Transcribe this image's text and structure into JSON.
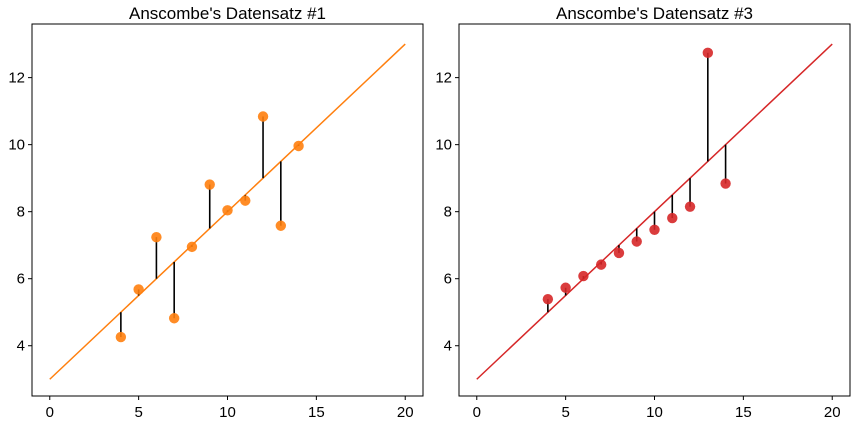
{
  "chart_data": [
    {
      "type": "scatter",
      "title": "Anscombe's Datensatz #1",
      "xlabel": "",
      "ylabel": "",
      "xlim": [
        -1,
        21
      ],
      "ylim": [
        2.5,
        13.6
      ],
      "xticks": [
        0,
        5,
        10,
        15,
        20
      ],
      "yticks": [
        4,
        6,
        8,
        10,
        12
      ],
      "grid": false,
      "color": "#ff7f0e",
      "residual_color": "#000000",
      "fit_line": {
        "intercept": 3.0,
        "slope": 0.5,
        "x_range": [
          0,
          20
        ]
      },
      "x": [
        10,
        8,
        13,
        9,
        11,
        14,
        6,
        4,
        12,
        7,
        5
      ],
      "y": [
        8.04,
        6.95,
        7.58,
        8.81,
        8.33,
        9.96,
        7.24,
        4.26,
        10.84,
        4.82,
        5.68
      ]
    },
    {
      "type": "scatter",
      "title": "Anscombe's Datensatz #3",
      "xlabel": "",
      "ylabel": "",
      "xlim": [
        -1,
        21
      ],
      "ylim": [
        2.5,
        13.6
      ],
      "xticks": [
        0,
        5,
        10,
        15,
        20
      ],
      "yticks": [
        4,
        6,
        8,
        10,
        12
      ],
      "grid": false,
      "color": "#d62728",
      "residual_color": "#000000",
      "fit_line": {
        "intercept": 3.0,
        "slope": 0.5,
        "x_range": [
          0,
          20
        ]
      },
      "x": [
        10,
        8,
        13,
        9,
        11,
        14,
        6,
        4,
        12,
        7,
        5
      ],
      "y": [
        7.46,
        6.77,
        12.74,
        7.11,
        7.81,
        8.84,
        6.08,
        5.39,
        8.15,
        6.42,
        5.73
      ]
    }
  ]
}
